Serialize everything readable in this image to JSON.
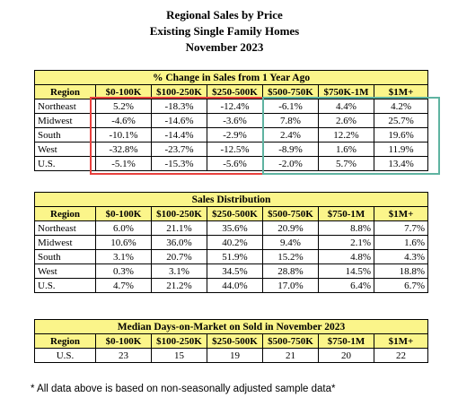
{
  "title": {
    "line1": "Regional Sales by Price",
    "line2": "Existing Single Family Homes",
    "line3": "November 2023"
  },
  "columns": [
    "Region",
    "$0-100K",
    "$100-250K",
    "$250-500K",
    "$500-750K",
    "$750K-1M",
    "$1M+"
  ],
  "columns_dist": [
    "Region",
    "$0-100K",
    "$100-250K",
    "$250-500K",
    "$500-750K",
    "$750-1M",
    "$1M+"
  ],
  "table1": {
    "caption": "% Change in Sales from 1 Year Ago",
    "rows": [
      [
        "Northeast",
        "5.2%",
        "-18.3%",
        "-12.4%",
        "-6.1%",
        "4.4%",
        "4.2%"
      ],
      [
        "Midwest",
        "-4.6%",
        "-14.6%",
        "-3.6%",
        "7.8%",
        "2.6%",
        "25.7%"
      ],
      [
        "South",
        "-10.1%",
        "-14.4%",
        "-2.9%",
        "2.4%",
        "12.2%",
        "19.6%"
      ],
      [
        "West",
        "-32.8%",
        "-23.7%",
        "-12.5%",
        "-8.9%",
        "1.6%",
        "11.9%"
      ],
      [
        "U.S.",
        "-5.1%",
        "-15.3%",
        "-5.6%",
        "-2.0%",
        "5.7%",
        "13.4%"
      ]
    ],
    "highlight_colors": {
      "negative_box": "#e8413e",
      "positive_box": "#5fb3a1"
    }
  },
  "table2": {
    "caption": "Sales Distribution",
    "rows": [
      [
        "Northeast",
        "6.0%",
        "21.1%",
        "35.6%",
        "20.9%",
        "8.8%",
        "7.7%"
      ],
      [
        "Midwest",
        "10.6%",
        "36.0%",
        "40.2%",
        "9.4%",
        "2.1%",
        "1.6%"
      ],
      [
        "South",
        "3.1%",
        "20.7%",
        "51.9%",
        "15.2%",
        "4.8%",
        "4.3%"
      ],
      [
        "West",
        "0.3%",
        "3.1%",
        "34.5%",
        "28.8%",
        "14.5%",
        "18.8%"
      ],
      [
        "U.S.",
        "4.7%",
        "21.2%",
        "44.0%",
        "17.0%",
        "6.4%",
        "6.7%"
      ]
    ]
  },
  "table3": {
    "caption": "Median Days-on-Market on Sold in November 2023",
    "rows": [
      [
        "U.S.",
        "23",
        "15",
        "19",
        "21",
        "20",
        "22"
      ]
    ]
  },
  "footnote": "* All data above is based on non-seasonally adjusted sample data*",
  "colors": {
    "header_fill": "#fbf58a"
  }
}
